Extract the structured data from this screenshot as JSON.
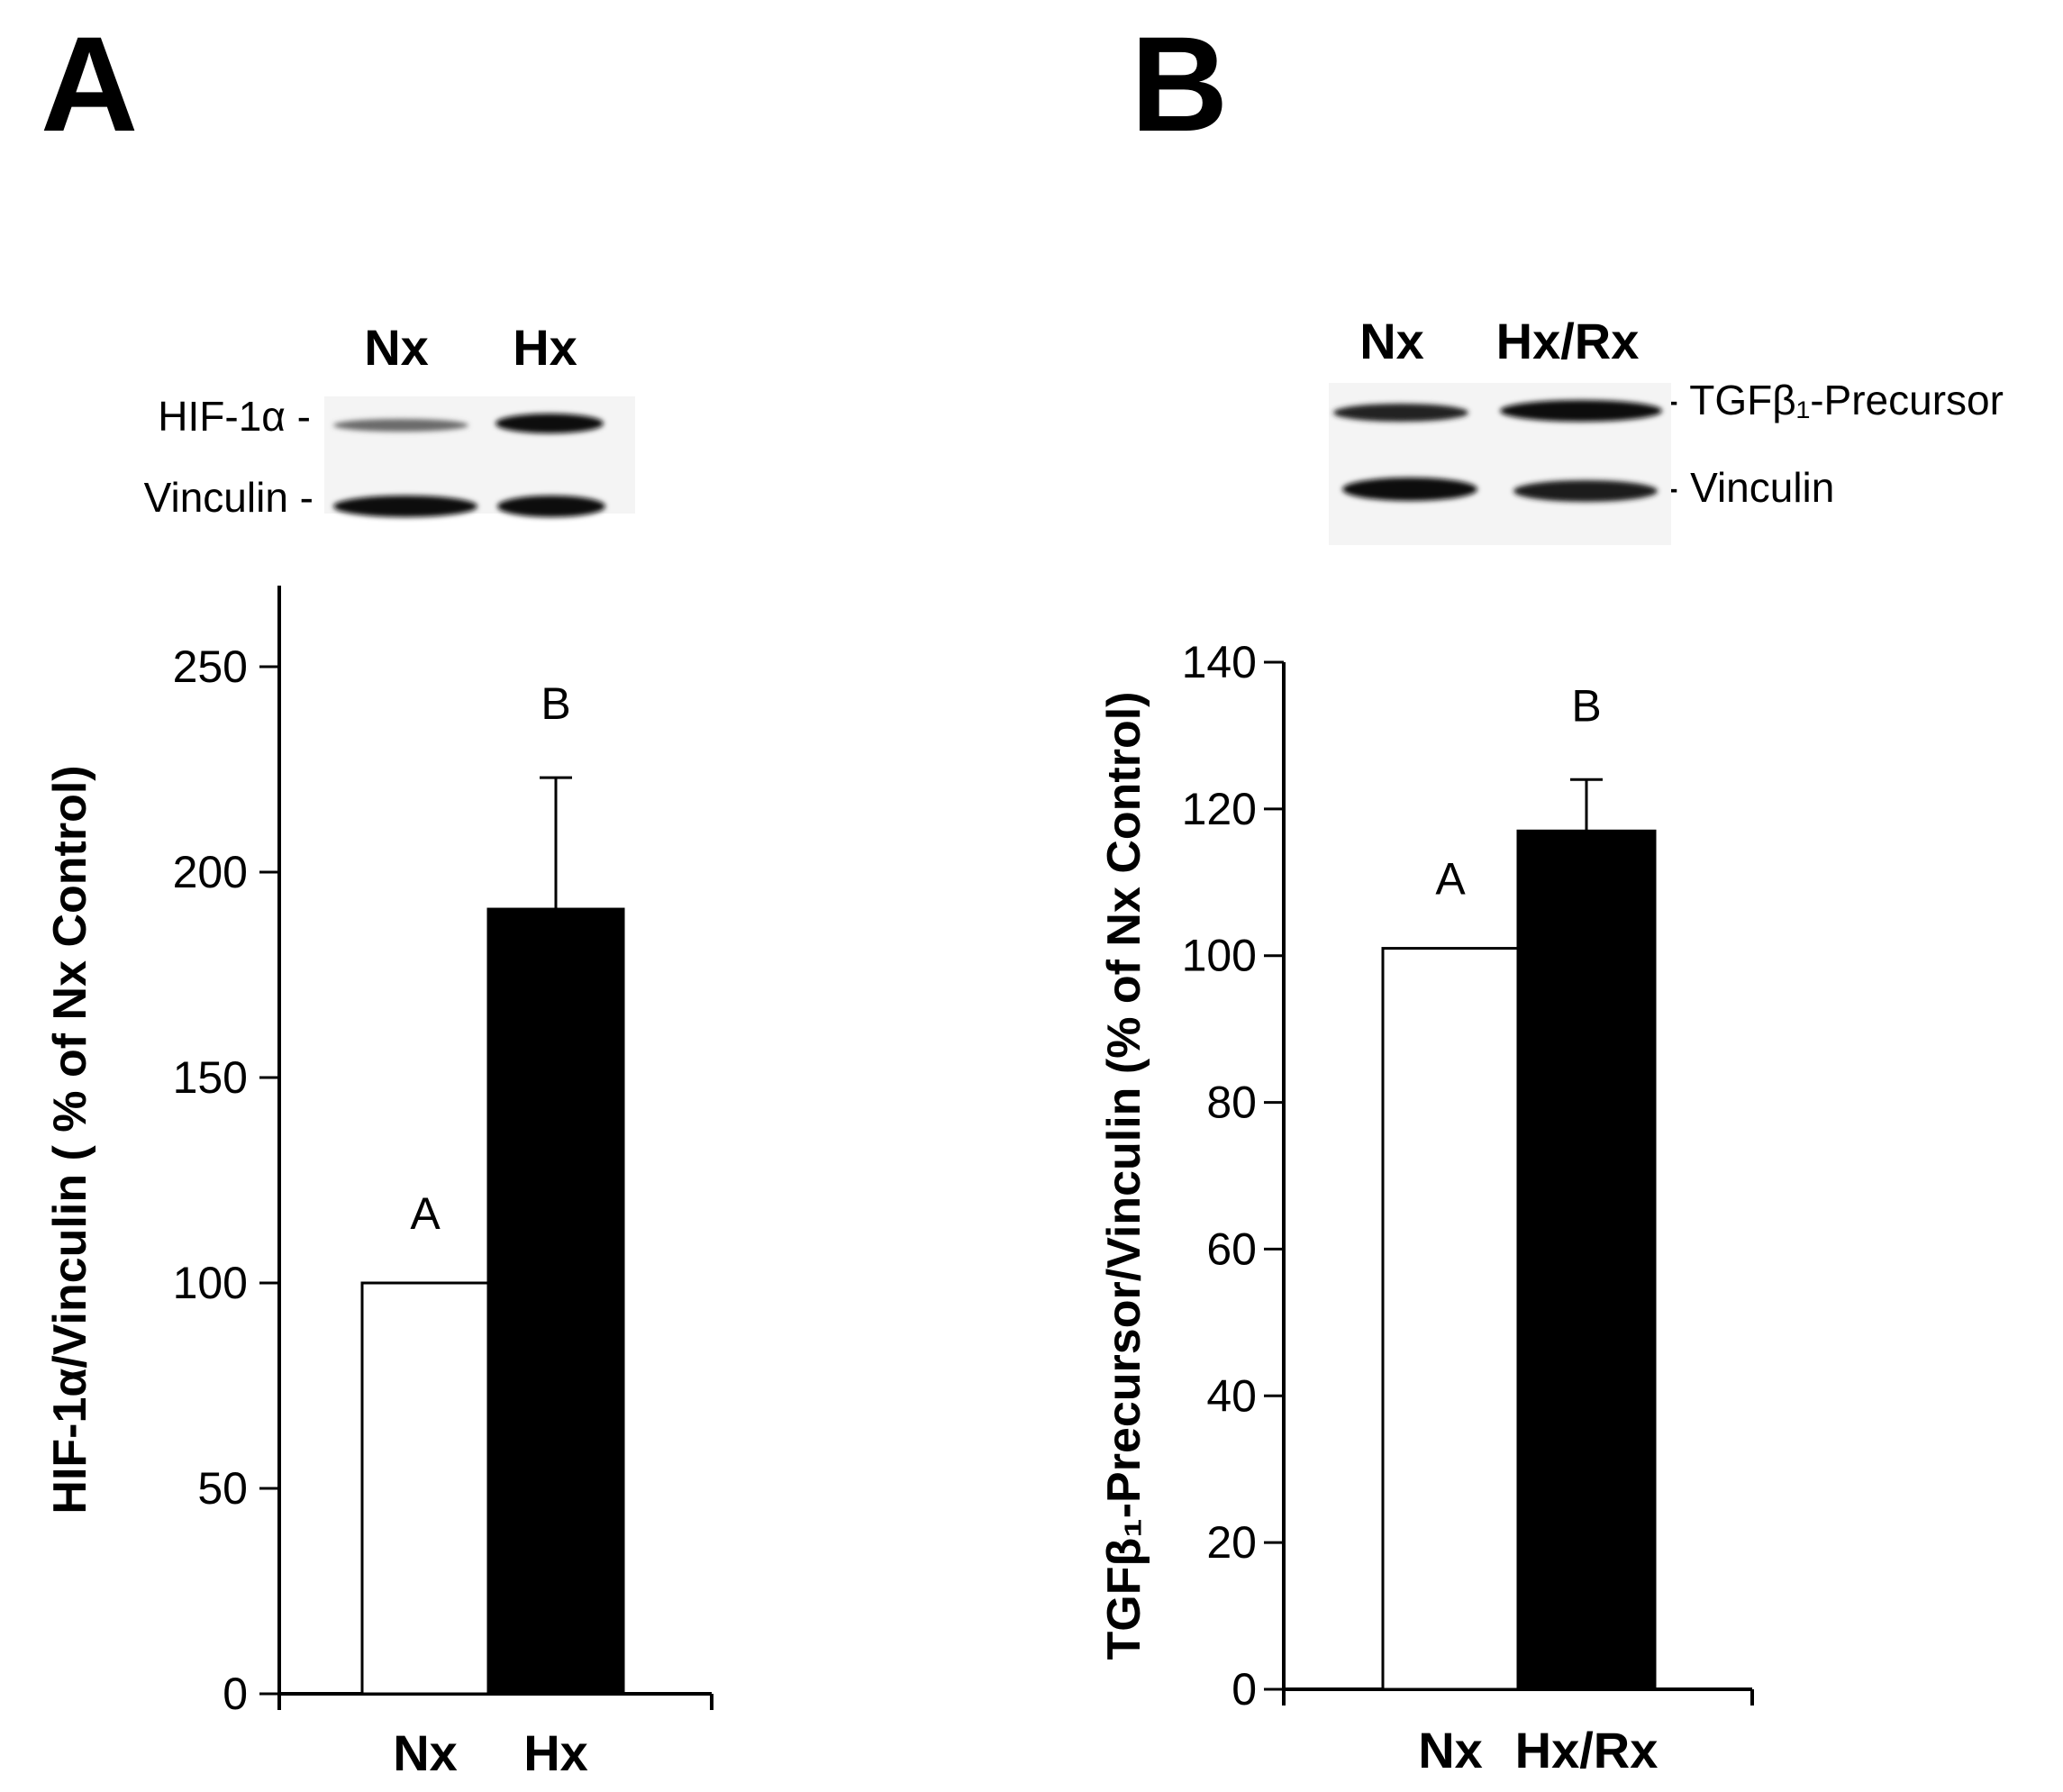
{
  "panels": [
    {
      "letter": "A",
      "blot": {
        "lanes": [
          "Nx",
          "Hx"
        ],
        "rows": [
          "HIF-1α -",
          "Vinculin -"
        ]
      }
    },
    {
      "letter": "B",
      "blot": {
        "lanes": [
          "Nx",
          "Hx/Rx"
        ],
        "rows": [
          "- TGFβ₁-Precursor",
          "- Vinculin"
        ]
      }
    }
  ],
  "chart_data": [
    {
      "type": "bar",
      "categories": [
        "Nx",
        "Hx"
      ],
      "values": [
        100,
        191
      ],
      "errors": [
        0,
        32
      ],
      "significance": [
        "A",
        "B"
      ],
      "bar_colors": [
        "#ffffff",
        "#000000"
      ],
      "ylabel": "HIF-1α/Vinculin ( % of Nx Control)",
      "ylim": [
        0,
        250
      ],
      "yticks": [
        "0",
        "50",
        "100",
        "150",
        "200",
        "250"
      ],
      "grid": false
    },
    {
      "type": "bar",
      "categories": [
        "Nx",
        "Hx/Rx"
      ],
      "values": [
        101,
        117
      ],
      "errors": [
        0,
        7
      ],
      "significance": [
        "A",
        "B"
      ],
      "bar_colors": [
        "#ffffff",
        "#000000"
      ],
      "ylabel": "TGFβ₁-Precursor/Vinculin (% of Nx Control)",
      "ylim": [
        0,
        140
      ],
      "yticks": [
        "0",
        "20",
        "40",
        "60",
        "80",
        "100",
        "120",
        "140"
      ],
      "grid": false
    }
  ]
}
